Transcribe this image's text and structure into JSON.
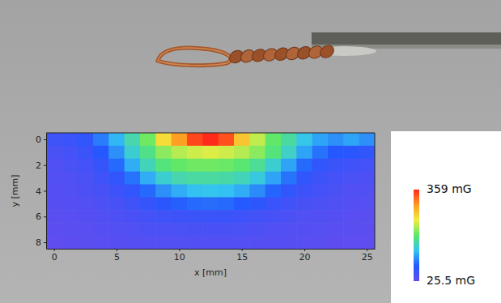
{
  "chart_data": {
    "type": "heatmap",
    "xlabel": "x [mm]",
    "ylabel": "y [mm]",
    "x": [
      0,
      1.25,
      2.5,
      3.75,
      5,
      6.25,
      7.5,
      8.75,
      10,
      11.25,
      12.5,
      13.75,
      15,
      16.25,
      17.5,
      18.75,
      20,
      21.25,
      22.5,
      23.75,
      25
    ],
    "y": [
      0,
      1,
      2,
      3,
      4,
      5,
      6,
      7,
      8
    ],
    "values": [
      [
        55,
        60,
        70,
        100,
        130,
        165,
        200,
        260,
        300,
        345,
        359,
        340,
        275,
        230,
        195,
        170,
        140,
        120,
        110,
        120,
        110
      ],
      [
        45,
        50,
        60,
        80,
        110,
        150,
        180,
        210,
        225,
        235,
        240,
        235,
        225,
        210,
        185,
        155,
        120,
        95,
        80,
        75,
        70
      ],
      [
        40,
        45,
        50,
        65,
        90,
        125,
        160,
        185,
        195,
        200,
        200,
        198,
        190,
        175,
        150,
        120,
        90,
        70,
        60,
        55,
        50
      ],
      [
        38,
        40,
        45,
        55,
        70,
        95,
        125,
        150,
        165,
        170,
        170,
        168,
        160,
        145,
        120,
        95,
        70,
        58,
        50,
        45,
        42
      ],
      [
        35,
        38,
        42,
        48,
        58,
        70,
        90,
        110,
        125,
        135,
        138,
        135,
        125,
        108,
        88,
        70,
        58,
        50,
        45,
        40,
        38
      ],
      [
        33,
        35,
        38,
        42,
        48,
        55,
        65,
        75,
        85,
        90,
        92,
        90,
        82,
        72,
        62,
        54,
        48,
        44,
        40,
        36,
        34
      ],
      [
        30,
        32,
        35,
        38,
        42,
        46,
        50,
        55,
        58,
        60,
        60,
        60,
        57,
        52,
        48,
        44,
        40,
        38,
        35,
        32,
        30
      ],
      [
        28,
        30,
        32,
        35,
        38,
        40,
        42,
        44,
        45,
        46,
        46,
        46,
        45,
        43,
        40,
        38,
        36,
        34,
        32,
        30,
        28
      ],
      [
        25.5,
        27,
        29,
        31,
        33,
        35,
        37,
        38,
        38,
        39,
        39,
        39,
        38,
        37,
        35,
        33,
        31,
        29,
        27,
        26,
        25.5
      ]
    ],
    "xlim": [
      -0.625,
      25.625
    ],
    "ylim": [
      8.5,
      -0.5
    ],
    "xticks": [
      0,
      5,
      10,
      15,
      20,
      25
    ],
    "yticks": [
      0,
      2,
      4,
      6,
      8
    ],
    "colorbar": {
      "range": [
        25.5,
        359
      ],
      "ticks": [
        {
          "value": 25.5,
          "label": "25.5 mG"
        },
        {
          "value": 359,
          "label": "359 mG"
        }
      ],
      "colors": [
        "#5f4df0",
        "#2458ff",
        "#33c4f2",
        "#5ae86a",
        "#f2ee40",
        "#ff9a22",
        "#ff2a1a"
      ]
    }
  }
}
